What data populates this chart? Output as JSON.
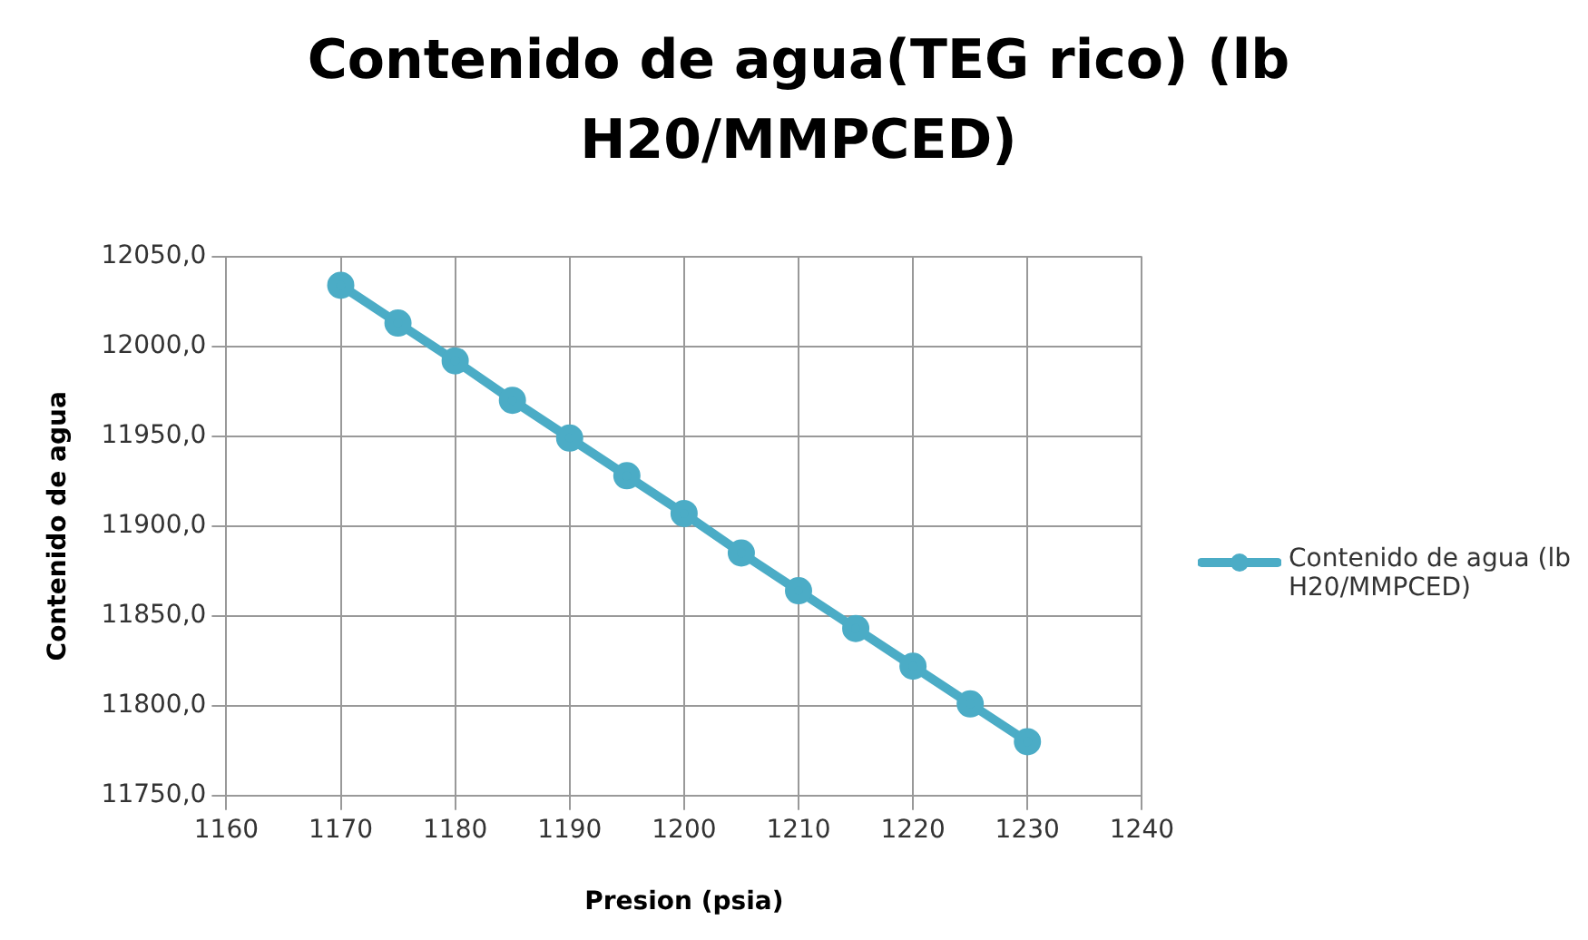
{
  "chart_data": {
    "type": "line",
    "title": "Contenido de agua(TEG rico) (lb H20/MMPCED)",
    "xlabel": "Presion (psia)",
    "ylabel": "Contenido de agua",
    "x": [
      1170,
      1175,
      1180,
      1185,
      1190,
      1195,
      1200,
      1205,
      1210,
      1215,
      1220,
      1225,
      1230
    ],
    "series": [
      {
        "name": "Contenido de agua (lb H20/MMPCED)",
        "color": "#4bacc6",
        "values": [
          12034,
          12013,
          11992,
          11970,
          11949,
          11928,
          11907,
          11885,
          11864,
          11843,
          11822,
          11801,
          11780
        ]
      }
    ],
    "xlim": [
      1160,
      1240
    ],
    "xticks": [
      1160,
      1170,
      1180,
      1190,
      1200,
      1210,
      1220,
      1230,
      1240
    ],
    "ylim": [
      11750,
      12050
    ],
    "yticks": [
      {
        "value": 11750,
        "label": "11750,0"
      },
      {
        "value": 11800,
        "label": "11800,0"
      },
      {
        "value": 11850,
        "label": "11850,0"
      },
      {
        "value": 11900,
        "label": "11900,0"
      },
      {
        "value": 11950,
        "label": "11950,0"
      },
      {
        "value": 12000,
        "label": "12000,0"
      },
      {
        "value": 12050,
        "label": "12050,0"
      }
    ],
    "grid": true,
    "legend": "right",
    "marker": "circle",
    "line_style": "solid"
  }
}
